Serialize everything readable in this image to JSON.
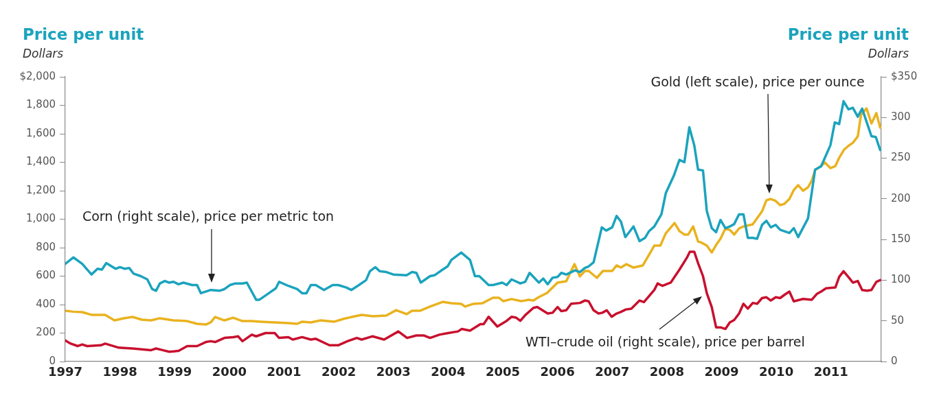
{
  "chart_data": {
    "type": "line",
    "ylabel": "Price per unit",
    "y2label": "Price per unit",
    "marker": "none",
    "line_style": "solid",
    "annotations": [
      "Dollars",
      "Dollars",
      "Corn (right scale), price per metric ton",
      "Gold (left scale), price per ounce",
      "WTI–crude oil (right scale), price per barrel"
    ],
    "xlim": [
      1997,
      2011.92
    ],
    "xticks": [
      1997,
      1998,
      1999,
      2000,
      2001,
      2002,
      2003,
      2004,
      2005,
      2006,
      2007,
      2008,
      2009,
      2010,
      2011
    ],
    "ylim": [
      0,
      2000
    ],
    "yticks": [
      0,
      200,
      400,
      600,
      800,
      {
        "value": 1000,
        "label": "1,000"
      },
      {
        "value": 1200,
        "label": "1,200"
      },
      {
        "value": 1400,
        "label": "1,400"
      },
      {
        "value": 1600,
        "label": "1,600"
      },
      {
        "value": 1800,
        "label": "1,800"
      },
      {
        "value": 2000,
        "label": "$2,000"
      }
    ],
    "y2lim": [
      0,
      350
    ],
    "y2ticks": [
      0,
      50,
      100,
      150,
      200,
      250,
      300,
      {
        "value": 350,
        "label": "$350"
      }
    ],
    "series": [
      {
        "color": "#1ba3bd",
        "axis": "y2",
        "x": [
          1997.0,
          1997.15,
          1997.31,
          1997.48,
          1997.59,
          1997.67,
          1997.75,
          1997.92,
          1998.0,
          1998.09,
          1998.17,
          1998.25,
          1998.38,
          1998.5,
          1998.59,
          1998.66,
          1998.73,
          1998.82,
          1998.9,
          1998.98,
          1999.07,
          1999.16,
          1999.32,
          1999.41,
          1999.48,
          1999.66,
          1999.82,
          1999.91,
          2000.01,
          2000.11,
          2000.24,
          2000.32,
          2000.49,
          2000.55,
          2000.7,
          2000.85,
          2000.91,
          2001.08,
          2001.24,
          2001.33,
          2001.41,
          2001.49,
          2001.58,
          2001.73,
          2001.89,
          2001.99,
          2002.14,
          2002.23,
          2002.37,
          2002.5,
          2002.57,
          2002.67,
          2002.75,
          2002.87,
          2003.0,
          2003.24,
          2003.34,
          2003.42,
          2003.5,
          2003.67,
          2003.75,
          2003.9,
          2003.99,
          2004.06,
          2004.24,
          2004.4,
          2004.49,
          2004.57,
          2004.74,
          2004.82,
          2004.99,
          2005.07,
          2005.16,
          2005.32,
          2005.41,
          2005.49,
          2005.66,
          2005.74,
          2005.82,
          2005.91,
          2006.0,
          2006.07,
          2006.16,
          2006.32,
          2006.41,
          2006.5,
          2006.57,
          2006.66,
          2006.81,
          2006.89,
          2007.0,
          2007.08,
          2007.16,
          2007.24,
          2007.31,
          2007.39,
          2007.5,
          2007.6,
          2007.67,
          2007.77,
          2007.9,
          2007.98,
          2008.13,
          2008.23,
          2008.32,
          2008.41,
          2008.5,
          2008.57,
          2008.66,
          2008.73,
          2008.82,
          2008.9,
          2008.98,
          2009.07,
          2009.15,
          2009.23,
          2009.32,
          2009.4,
          2009.48,
          2009.57,
          2009.65,
          2009.74,
          2009.82,
          2009.9,
          2009.99,
          2010.07,
          2010.24,
          2010.32,
          2010.4,
          2010.58,
          2010.71,
          2010.82,
          2010.99,
          2011.07,
          2011.15,
          2011.23,
          2011.32,
          2011.4,
          2011.49,
          2011.57,
          2011.66,
          2011.74,
          2011.82,
          2011.9
        ],
        "values": [
          120,
          128,
          120,
          107,
          114,
          113,
          121,
          114,
          116,
          114,
          115,
          108,
          105,
          101,
          89,
          87,
          96,
          99,
          97,
          98,
          95,
          97,
          94,
          94,
          84,
          88,
          87,
          89,
          94,
          96,
          96,
          97,
          76,
          76,
          83,
          90,
          98,
          93,
          89,
          84,
          84,
          94,
          94,
          88,
          94,
          94,
          91,
          88,
          94,
          100,
          111,
          116,
          111,
          110,
          107,
          106,
          110,
          109,
          97,
          105,
          106,
          113,
          117,
          125,
          134,
          125,
          105,
          105,
          94,
          94,
          97,
          94,
          101,
          96,
          98,
          109,
          97,
          102,
          95,
          103,
          104,
          109,
          107,
          112,
          110,
          115,
          117,
          122,
          165,
          161,
          165,
          179,
          172,
          153,
          159,
          166,
          148,
          152,
          160,
          166,
          181,
          207,
          229,
          248,
          245,
          288,
          266,
          236,
          235,
          185,
          164,
          159,
          174,
          164,
          166,
          169,
          181,
          181,
          152,
          152,
          151,
          168,
          173,
          165,
          168,
          162,
          158,
          164,
          153,
          176,
          236,
          240,
          266,
          294,
          292,
          320,
          310,
          312,
          301,
          311,
          293,
          277,
          276,
          260
        ]
      },
      {
        "color": "#e9b21f",
        "x": [
          1997.0,
          1997.15,
          1997.31,
          1997.48,
          1997.73,
          1997.9,
          1998.07,
          1998.23,
          1998.4,
          1998.57,
          1998.73,
          1998.98,
          1999.23,
          1999.41,
          1999.57,
          1999.66,
          1999.74,
          1999.91,
          2000.07,
          2000.24,
          2000.41,
          2000.57,
          2000.83,
          2001.08,
          2001.24,
          2001.33,
          2001.49,
          2001.67,
          2001.92,
          2002.08,
          2002.24,
          2002.42,
          2002.62,
          2002.87,
          2003.05,
          2003.24,
          2003.34,
          2003.49,
          2003.67,
          2003.9,
          2004.06,
          2004.24,
          2004.31,
          2004.46,
          2004.63,
          2004.82,
          2004.93,
          2005.01,
          2005.16,
          2005.34,
          2005.47,
          2005.56,
          2005.66,
          2005.81,
          2006.0,
          2006.16,
          2006.31,
          2006.41,
          2006.5,
          2006.57,
          2006.72,
          2006.83,
          2007.0,
          2007.08,
          2007.16,
          2007.26,
          2007.39,
          2007.56,
          2007.77,
          2007.88,
          2007.98,
          2008.14,
          2008.23,
          2008.32,
          2008.39,
          2008.48,
          2008.57,
          2008.64,
          2008.73,
          2008.82,
          2008.9,
          2008.98,
          2009.07,
          2009.15,
          2009.23,
          2009.32,
          2009.4,
          2009.57,
          2009.74,
          2009.82,
          2009.9,
          2009.99,
          2010.07,
          2010.15,
          2010.24,
          2010.32,
          2010.4,
          2010.49,
          2010.58,
          2010.65,
          2010.71,
          2010.8,
          2010.89,
          2010.99,
          2011.08,
          2011.15,
          2011.24,
          2011.33,
          2011.4,
          2011.49,
          2011.55,
          2011.65,
          2011.74,
          2011.83,
          2011.9
        ],
        "values": [
          357,
          350,
          347,
          328,
          328,
          289,
          304,
          313,
          294,
          289,
          304,
          289,
          284,
          265,
          260,
          275,
          313,
          289,
          308,
          284,
          284,
          280,
          275,
          270,
          265,
          280,
          275,
          289,
          280,
          299,
          313,
          328,
          318,
          323,
          361,
          333,
          357,
          357,
          386,
          419,
          410,
          405,
          386,
          405,
          410,
          448,
          448,
          424,
          439,
          424,
          434,
          429,
          453,
          482,
          554,
          564,
          684,
          598,
          636,
          636,
          588,
          636,
          636,
          675,
          660,
          684,
          660,
          675,
          814,
          814,
          901,
          973,
          916,
          892,
          892,
          949,
          843,
          834,
          814,
          766,
          819,
          863,
          935,
          925,
          892,
          935,
          949,
          964,
          1055,
          1133,
          1142,
          1128,
          1099,
          1108,
          1142,
          1205,
          1239,
          1200,
          1224,
          1272,
          1345,
          1369,
          1398,
          1359,
          1373,
          1431,
          1489,
          1518,
          1537,
          1581,
          1735,
          1778,
          1672,
          1745,
          1643
        ]
      },
      {
        "color": "#c8102e",
        "axis": "y2",
        "x": [
          1997.0,
          1997.1,
          1997.23,
          1997.31,
          1997.4,
          1997.65,
          1997.73,
          1997.98,
          1998.23,
          1998.4,
          1998.57,
          1998.66,
          1998.78,
          1998.9,
          1999.07,
          1999.23,
          1999.41,
          1999.57,
          1999.66,
          1999.74,
          1999.91,
          2000.07,
          2000.16,
          2000.24,
          2000.41,
          2000.49,
          2000.66,
          2000.83,
          2000.91,
          2001.08,
          2001.16,
          2001.33,
          2001.49,
          2001.58,
          2001.83,
          2001.99,
          2002.16,
          2002.33,
          2002.42,
          2002.57,
          2002.62,
          2002.83,
          2003.09,
          2003.25,
          2003.42,
          2003.56,
          2003.67,
          2003.84,
          2004.0,
          2004.18,
          2004.25,
          2004.4,
          2004.59,
          2004.65,
          2004.74,
          2004.9,
          2005.07,
          2005.16,
          2005.24,
          2005.32,
          2005.41,
          2005.56,
          2005.63,
          2005.75,
          2005.82,
          2005.91,
          2006.0,
          2006.07,
          2006.16,
          2006.25,
          2006.41,
          2006.5,
          2006.57,
          2006.66,
          2006.75,
          2006.82,
          2006.9,
          2006.99,
          2007.08,
          2007.16,
          2007.25,
          2007.35,
          2007.5,
          2007.58,
          2007.77,
          2007.83,
          2007.92,
          2008.07,
          2008.23,
          2008.36,
          2008.42,
          2008.5,
          2008.57,
          2008.66,
          2008.73,
          2008.82,
          2008.9,
          2008.98,
          2009.07,
          2009.15,
          2009.23,
          2009.32,
          2009.4,
          2009.48,
          2009.57,
          2009.65,
          2009.74,
          2009.82,
          2009.9,
          2009.99,
          2010.07,
          2010.15,
          2010.24,
          2010.32,
          2010.49,
          2010.65,
          2010.74,
          2010.82,
          2010.91,
          2011.08,
          2011.15,
          2011.23,
          2011.33,
          2011.4,
          2011.49,
          2011.57,
          2011.66,
          2011.74,
          2011.83,
          2011.9
        ],
        "values": [
          26,
          22,
          19,
          21,
          19,
          20,
          22,
          17,
          16,
          15,
          14,
          16,
          14,
          12,
          13,
          19,
          19,
          24,
          25,
          24,
          29,
          30,
          31,
          25,
          33,
          31,
          35,
          35,
          29,
          30,
          27,
          30,
          27,
          28,
          20,
          20,
          25,
          29,
          27,
          30,
          31,
          27,
          37,
          29,
          32,
          32,
          29,
          33,
          35,
          37,
          40,
          38,
          46,
          46,
          55,
          43,
          50,
          55,
          54,
          50,
          57,
          66,
          67,
          62,
          59,
          60,
          67,
          62,
          63,
          71,
          72,
          75,
          74,
          63,
          59,
          60,
          63,
          55,
          59,
          61,
          64,
          65,
          75,
          73,
          88,
          96,
          93,
          97,
          113,
          127,
          135,
          135,
          121,
          105,
          84,
          67,
          42,
          42,
          40,
          48,
          51,
          59,
          71,
          65,
          72,
          71,
          78,
          79,
          75,
          79,
          78,
          82,
          86,
          74,
          77,
          76,
          83,
          86,
          90,
          91,
          104,
          111,
          103,
          97,
          99,
          88,
          87,
          88,
          98,
          100
        ]
      }
    ]
  }
}
